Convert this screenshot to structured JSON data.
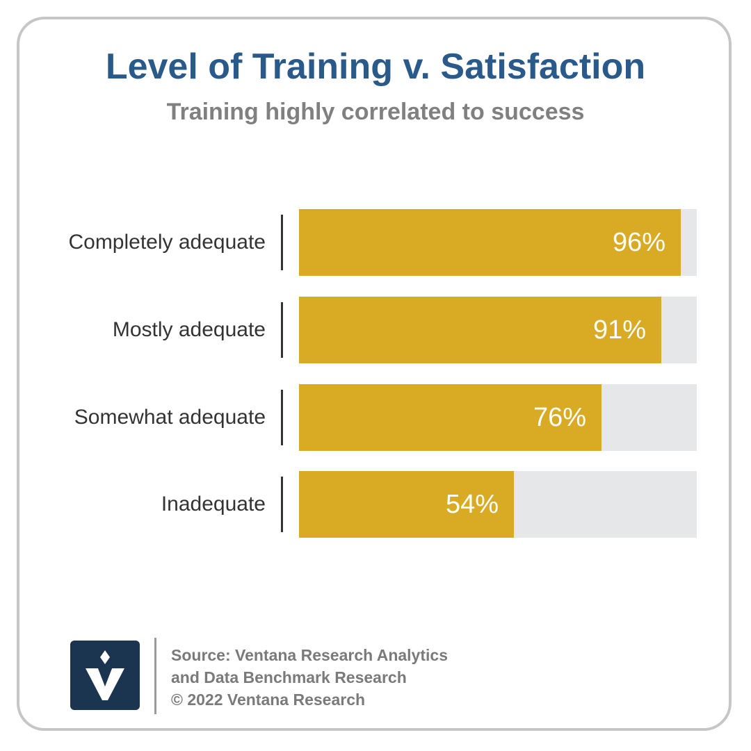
{
  "title": "Level of Training v. Satisfaction",
  "subtitle": "Training highly correlated to success",
  "chart_data": {
    "type": "bar",
    "orientation": "horizontal",
    "title": "Level of Training v. Satisfaction",
    "subtitle": "Training highly correlated to success",
    "categories": [
      "Completely adequate",
      "Mostly adequate",
      "Somewhat adequate",
      "Inadequate"
    ],
    "values": [
      96,
      91,
      76,
      54
    ],
    "value_labels": [
      "96%",
      "91%",
      "76%",
      "54%"
    ],
    "xlim": [
      0,
      100
    ],
    "xlabel": "",
    "ylabel": "",
    "grid": false,
    "legend": "none",
    "bar_color": "#d9ab25",
    "track_color": "#e6e7e8"
  },
  "footer": {
    "source_lines": [
      "Source: Ventana Research Analytics",
      "and Data Benchmark Research",
      "© 2022 Ventana Research"
    ]
  },
  "logo": {
    "icon": "ventana-v-logo-icon",
    "background": "#1b3550"
  },
  "colors": {
    "title": "#2a5a8a",
    "subtitle": "#808080",
    "frame": "#c6c6c6"
  }
}
